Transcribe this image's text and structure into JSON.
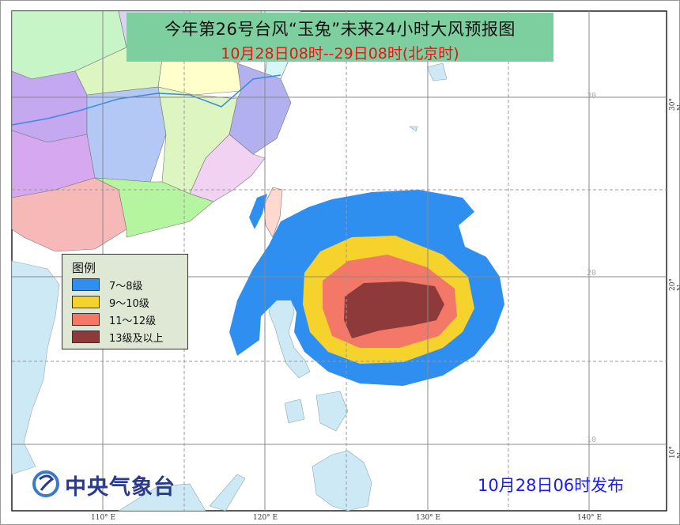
{
  "title": {
    "main": "今年第26号台风“玉兔”未来24小时大风预报图",
    "period": "10月28日08时--29日08时(北京时)"
  },
  "legend": {
    "title": "图例",
    "items": [
      {
        "label": "7～8级",
        "color": "#2f8ff0"
      },
      {
        "label": "9～10级",
        "color": "#f5d22c"
      },
      {
        "label": "11～12级",
        "color": "#f47868"
      },
      {
        "label": "13级及以上",
        "color": "#8e3a3a"
      }
    ]
  },
  "map": {
    "longitude_labels": [
      "110° E",
      "120° E",
      "130° E",
      "140° E"
    ],
    "latitude_labels": [
      "30° N",
      "20° N",
      "10° N"
    ],
    "inner_latitude_labels": [
      "30",
      "20",
      "10"
    ],
    "colors": {
      "sea": "#ffffff",
      "foreign_land": "#cde9f6",
      "grid": "#888888"
    }
  },
  "footer": {
    "agency": "中央气象台",
    "issued": "10月28日06时发布"
  }
}
